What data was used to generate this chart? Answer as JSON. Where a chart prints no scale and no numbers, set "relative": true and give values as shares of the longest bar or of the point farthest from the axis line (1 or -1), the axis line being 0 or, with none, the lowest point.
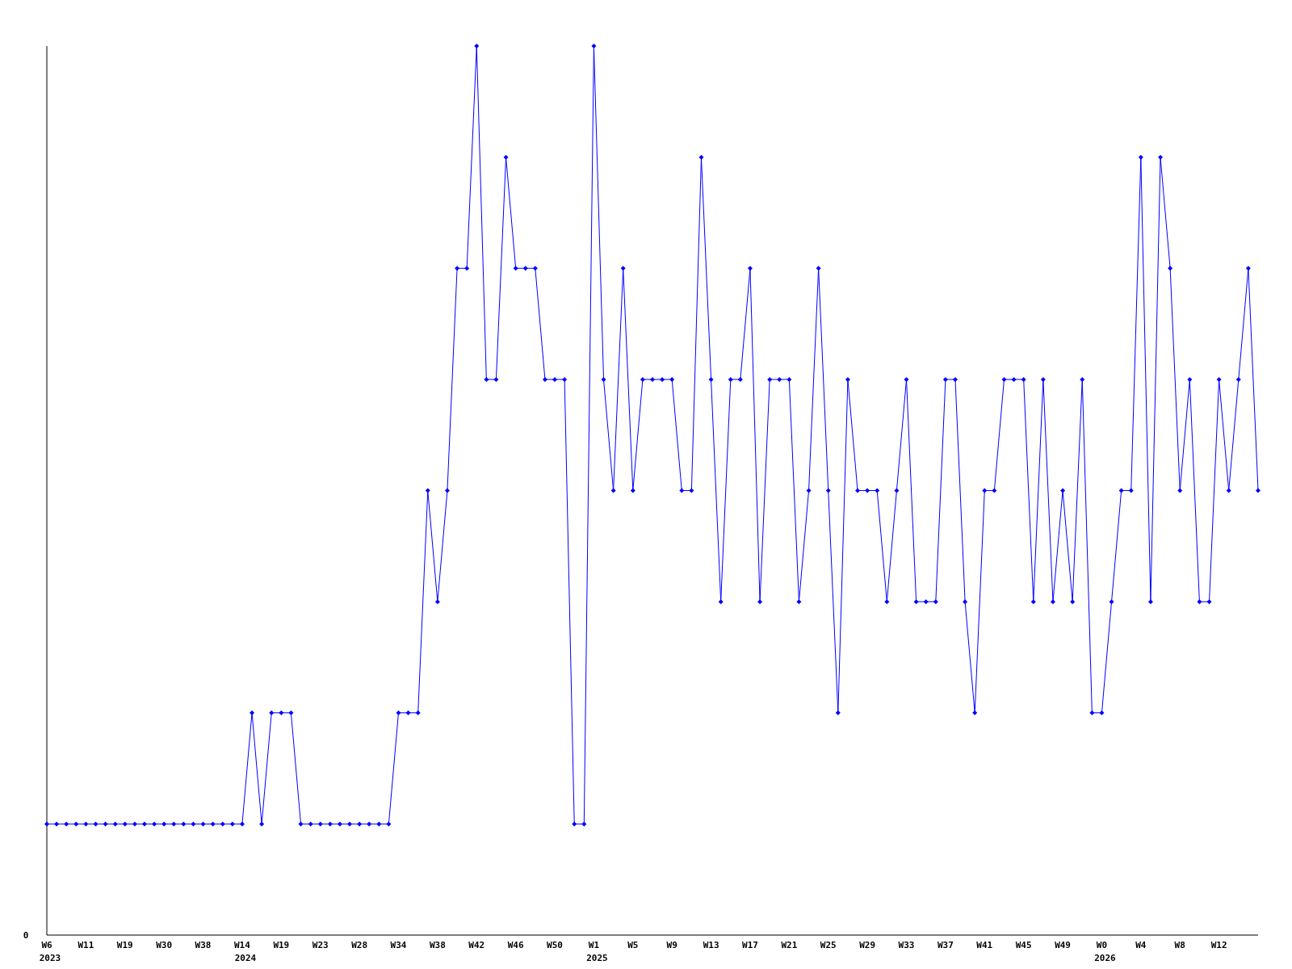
{
  "chart_data": {
    "type": "line",
    "relative": true,
    "marker": "diamond",
    "line_style": "solid",
    "annotations": [
      "0",
      "2023",
      "2024",
      "2025",
      "2026"
    ],
    "categories": [
      "W6",
      null,
      null,
      null,
      "W11",
      null,
      null,
      null,
      "W19",
      null,
      null,
      null,
      "W30",
      null,
      null,
      null,
      "W38",
      null,
      null,
      null,
      "W14",
      null,
      null,
      null,
      "W19",
      null,
      null,
      null,
      "W23",
      null,
      null,
      null,
      "W28",
      null,
      null,
      null,
      "W34",
      null,
      null,
      null,
      "W38",
      null,
      null,
      null,
      "W42",
      null,
      null,
      null,
      "W46",
      null,
      null,
      null,
      "W50",
      null,
      null,
      null,
      "W1",
      null,
      null,
      null,
      "W5",
      null,
      null,
      null,
      "W9",
      null,
      null,
      null,
      "W13",
      null,
      null,
      null,
      "W17",
      null,
      null,
      null,
      "W21",
      null,
      null,
      null,
      "W25",
      null,
      null,
      null,
      "W29",
      null,
      null,
      null,
      "W33",
      null,
      null,
      null,
      "W37",
      null,
      null,
      null,
      "W41",
      null,
      null,
      null,
      "W45",
      null,
      null,
      null,
      "W49",
      null,
      null,
      null,
      "W0",
      null,
      null,
      null,
      "W4",
      null,
      null,
      null,
      "W8",
      null,
      null,
      null,
      "W12",
      null,
      null,
      null,
      null
    ],
    "series": [
      {
        "color": "#0000ff",
        "values": [
          0.125,
          0.125,
          0.125,
          0.125,
          0.125,
          0.125,
          0.125,
          0.125,
          0.125,
          0.125,
          0.125,
          0.125,
          0.125,
          0.125,
          0.125,
          0.125,
          0.125,
          0.125,
          0.125,
          0.125,
          0.125,
          0.25,
          0.125,
          0.25,
          0.25,
          0.25,
          0.125,
          0.125,
          0.125,
          0.125,
          0.125,
          0.125,
          0.125,
          0.125,
          0.125,
          0.125,
          0.25,
          0.25,
          0.25,
          0.5,
          0.375,
          0.5,
          0.75,
          0.75,
          1,
          0.625,
          0.625,
          0.875,
          0.75,
          0.75,
          0.75,
          0.625,
          0.625,
          0.625,
          0.125,
          0.125,
          1,
          0.625,
          0.5,
          0.75,
          0.5,
          0.625,
          0.625,
          0.625,
          0.625,
          0.5,
          0.5,
          0.875,
          0.625,
          0.375,
          0.625,
          0.625,
          0.75,
          0.375,
          0.625,
          0.625,
          0.625,
          0.375,
          0.5,
          0.75,
          0.5,
          0.25,
          0.625,
          0.5,
          0.5,
          0.5,
          0.375,
          0.5,
          0.625,
          0.375,
          0.375,
          0.375,
          0.625,
          0.625,
          0.375,
          0.25,
          0.5,
          0.5,
          0.625,
          0.625,
          0.625,
          0.375,
          0.625,
          0.375,
          0.5,
          0.375,
          0.625,
          0.25,
          0.25,
          0.375,
          0.5,
          0.5,
          0.875,
          0.375,
          0.875,
          0.75,
          0.5,
          0.625,
          0.375,
          0.375,
          0.625,
          0.5,
          0.625,
          0.75,
          0.5
        ]
      }
    ]
  }
}
